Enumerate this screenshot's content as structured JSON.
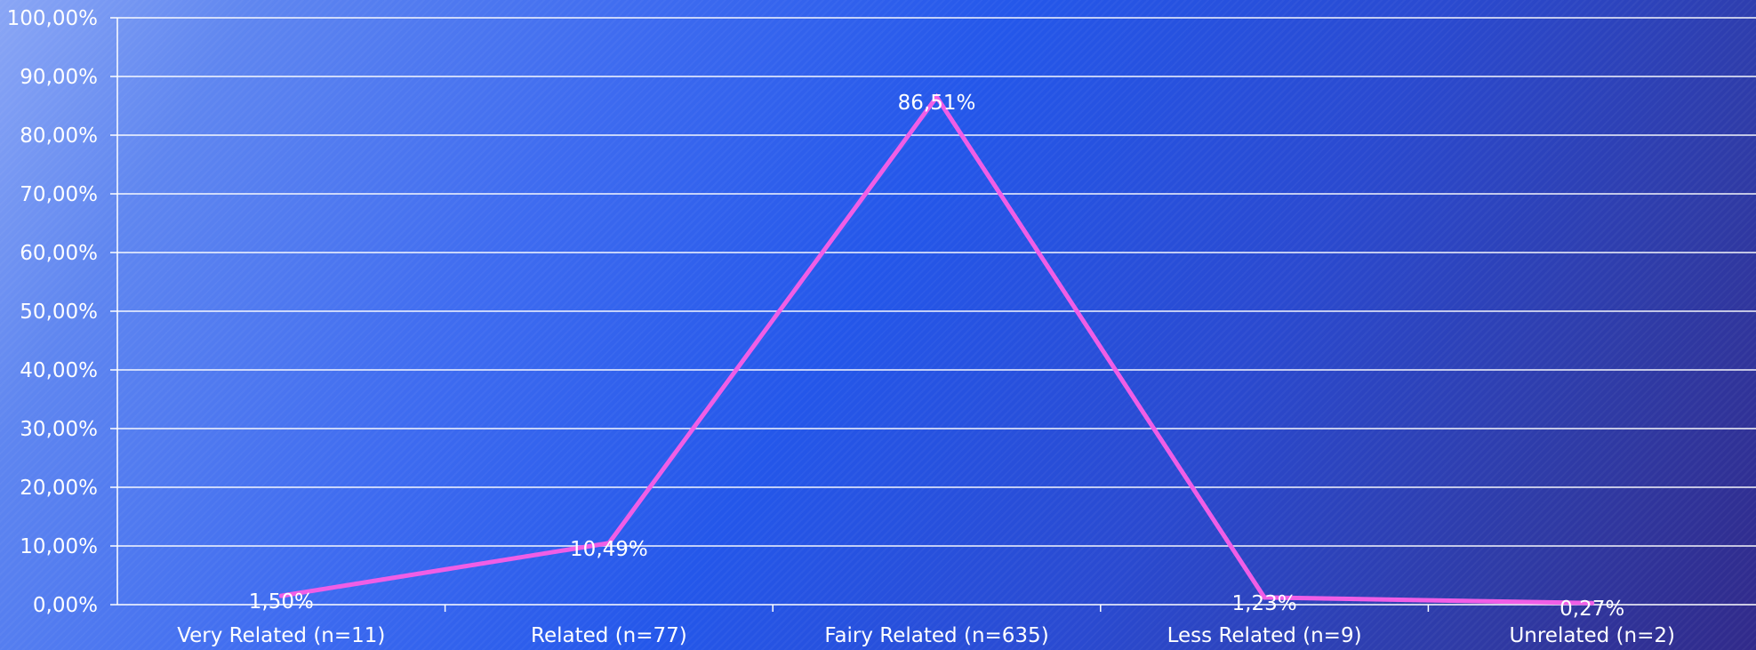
{
  "chart_data": {
    "type": "line",
    "title": "",
    "xlabel": "",
    "ylabel": "",
    "categories": [
      "Very Related (n=11)",
      "Related (n=77)",
      "Fairy Related (n=635)",
      "Less Related (n=9)",
      "Unrelated (n=2)"
    ],
    "series": [
      {
        "values": [
          1.5,
          10.49,
          86.51,
          1.23,
          0.27
        ],
        "data_labels": [
          "1,50%",
          "10,49%",
          "86,51%",
          "1,23%",
          "0,27%"
        ],
        "color": "#f05ee6"
      }
    ],
    "ylim": [
      0,
      100
    ],
    "y_ticks": [
      0,
      10,
      20,
      30,
      40,
      50,
      60,
      70,
      80,
      90,
      100
    ],
    "y_tick_labels": [
      "0,00%",
      "10,00%",
      "20,00%",
      "30,00%",
      "40,00%",
      "50,00%",
      "60,00%",
      "70,00%",
      "80,00%",
      "90,00%",
      "100,00%"
    ],
    "grid": true,
    "legend": "none",
    "colors": {
      "background_light": "#8aa6f5",
      "background_mid": "#2457ea",
      "background_dark": "#312a8a",
      "gridline": "#ffffff",
      "text": "#ffffff",
      "line": "#f05ee6"
    }
  }
}
